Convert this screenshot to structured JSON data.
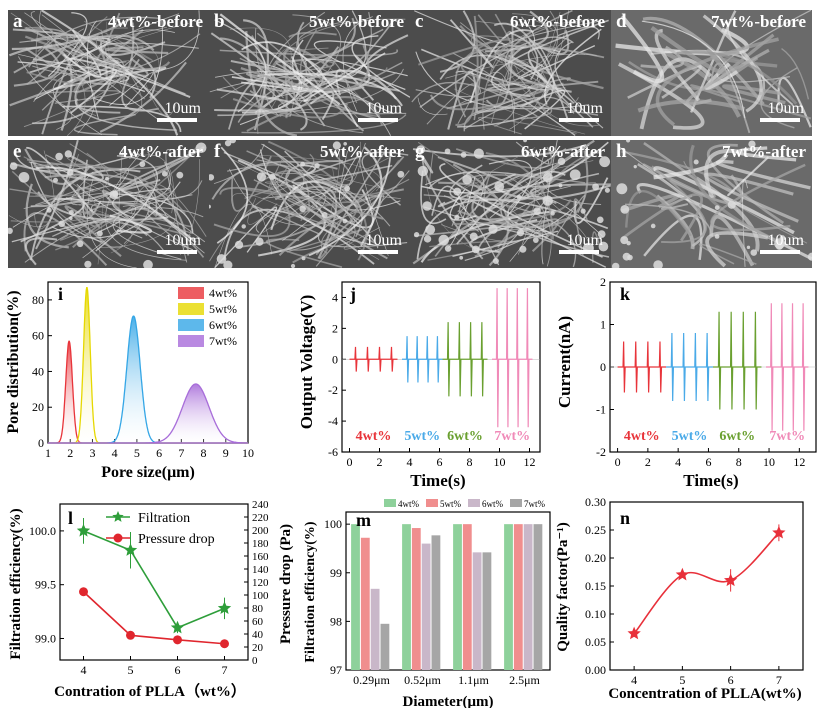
{
  "sem": {
    "panels": [
      {
        "letter": "a",
        "title": "4wt%-before",
        "scale": "10um"
      },
      {
        "letter": "b",
        "title": "5wt%-before",
        "scale": "10um"
      },
      {
        "letter": "c",
        "title": "6wt%-before",
        "scale": "10um"
      },
      {
        "letter": "d",
        "title": "7wt%-before",
        "scale": "10um"
      },
      {
        "letter": "e",
        "title": "4wt%-after",
        "scale": "10um"
      },
      {
        "letter": "f",
        "title": "5wt%-after",
        "scale": "10um"
      },
      {
        "letter": "g",
        "title": "6wt%-after",
        "scale": "10um"
      },
      {
        "letter": "h",
        "title": "7wt%-after",
        "scale": "10um"
      }
    ]
  },
  "chart_data": [
    {
      "id": "i",
      "type": "area",
      "panel_letter": "i",
      "title": "",
      "xlabel": "Pore size(μm)",
      "ylabel": "Pore distribution(%)",
      "xlim": [
        1,
        10
      ],
      "ylim": [
        0,
        90
      ],
      "xticks": [
        1,
        2,
        3,
        4,
        5,
        6,
        7,
        8,
        9,
        10
      ],
      "yticks": [
        0,
        20,
        40,
        60,
        80
      ],
      "series": [
        {
          "name": "4wt%",
          "peak_x": 1.95,
          "peak_y": 57,
          "width": 0.15,
          "color": "#e8343a"
        },
        {
          "name": "5wt%",
          "peak_x": 2.75,
          "peak_y": 87,
          "width": 0.15,
          "color": "#e6d800"
        },
        {
          "name": "6wt%",
          "peak_x": 4.85,
          "peak_y": 71,
          "width": 0.3,
          "color": "#34a6e6"
        },
        {
          "name": "7wt%",
          "peak_x": 7.65,
          "peak_y": 33,
          "width": 0.6,
          "color": "#a76cd9"
        }
      ]
    },
    {
      "id": "j",
      "type": "line",
      "panel_letter": "j",
      "title": "",
      "xlabel": "Time(s)",
      "ylabel": "Output Voltage(V)",
      "xlim": [
        -0.5,
        12.7
      ],
      "ylim": [
        -6,
        5
      ],
      "xticks": [
        0,
        2,
        4,
        6,
        8,
        10,
        12
      ],
      "yticks": [
        -6,
        -4,
        -2,
        0,
        2,
        4
      ],
      "series": [
        {
          "name": "4wt%",
          "t_start": 0,
          "t_end": 3.2,
          "amp_pos": 0.8,
          "amp_neg": 0.8,
          "color": "#e8343a"
        },
        {
          "name": "5wt%",
          "t_start": 3.5,
          "t_end": 6.2,
          "amp_pos": 1.5,
          "amp_neg": 1.5,
          "color": "#4aaae8"
        },
        {
          "name": "6wt%",
          "t_start": 6.2,
          "t_end": 9.2,
          "amp_pos": 2.4,
          "amp_neg": 2.4,
          "color": "#6aa030"
        },
        {
          "name": "7wt%",
          "t_start": 9.5,
          "t_end": 12.2,
          "amp_pos": 4.6,
          "amp_neg": 4.4,
          "color": "#f08ab8"
        }
      ]
    },
    {
      "id": "k",
      "type": "line",
      "panel_letter": "k",
      "title": "",
      "xlabel": "Time(s)",
      "ylabel": "Current(nA)",
      "xlim": [
        -0.5,
        13.1
      ],
      "ylim": [
        -2,
        2
      ],
      "xticks": [
        0,
        2,
        4,
        6,
        8,
        10,
        12
      ],
      "yticks": [
        -2,
        -1,
        0,
        1,
        2
      ],
      "series": [
        {
          "name": "4wt%",
          "t_start": 0,
          "t_end": 3.2,
          "amp_pos": 0.6,
          "amp_neg": 0.6,
          "color": "#e8343a"
        },
        {
          "name": "5wt%",
          "t_start": 3.2,
          "t_end": 6.3,
          "amp_pos": 0.8,
          "amp_neg": 0.8,
          "color": "#4aaae8"
        },
        {
          "name": "6wt%",
          "t_start": 6.3,
          "t_end": 9.5,
          "amp_pos": 1.3,
          "amp_neg": 1.0,
          "color": "#6aa030"
        },
        {
          "name": "7wt%",
          "t_start": 9.8,
          "t_end": 12.6,
          "amp_pos": 1.5,
          "amp_neg": 1.5,
          "color": "#f08ab8"
        }
      ]
    },
    {
      "id": "l",
      "type": "line",
      "panel_letter": "l",
      "title": "",
      "xlabel": "Contration of PLLA（wt%）",
      "ylabel": "Filtration efficiency(%)",
      "ylabel_right": "Pressure drop (Pa)",
      "x": [
        4,
        5,
        6,
        7
      ],
      "xlim": [
        3.5,
        7.5
      ],
      "ylim": [
        98.8,
        100.25
      ],
      "ylim_right": [
        0,
        240
      ],
      "xticks": [
        4,
        5,
        6,
        7
      ],
      "yticks": [
        99.0,
        99.5,
        100.0
      ],
      "yticks_right": [
        0,
        20,
        40,
        60,
        80,
        100,
        120,
        140,
        160,
        180,
        200,
        220,
        240
      ],
      "series": [
        {
          "name": "Filtration",
          "axis": "left",
          "values": [
            100.0,
            99.82,
            99.1,
            99.28
          ],
          "errors": [
            0.12,
            0.17,
            0.05,
            0.1
          ],
          "marker": "star",
          "color": "#2e9e3a"
        },
        {
          "name": "Pressure drop",
          "axis": "right",
          "values": [
            105,
            38,
            31,
            25
          ],
          "errors": [
            3,
            2,
            2,
            2
          ],
          "marker": "circle",
          "color": "#e0262e"
        }
      ]
    },
    {
      "id": "m",
      "type": "bar",
      "panel_letter": "m",
      "title": "",
      "xlabel": "Diameter(μm)",
      "ylabel": "Filtration efficiency(%)",
      "categories": [
        "0.29μm",
        "0.52μm",
        "1.1μm",
        "2.5μm"
      ],
      "ylim": [
        97,
        100.25
      ],
      "yticks": [
        97,
        98,
        99,
        100
      ],
      "series": [
        {
          "name": "4wt%",
          "values": [
            100.0,
            100.0,
            100.0,
            100.0
          ],
          "color": "#8ed19b"
        },
        {
          "name": "5wt%",
          "values": [
            99.72,
            99.92,
            100.0,
            100.0
          ],
          "color": "#f08e8e"
        },
        {
          "name": "6wt%",
          "values": [
            98.67,
            99.6,
            99.42,
            100.0
          ],
          "color": "#c9b7c9"
        },
        {
          "name": "7wt%",
          "values": [
            97.95,
            99.77,
            99.42,
            100.0
          ],
          "color": "#a6a6a6"
        }
      ]
    },
    {
      "id": "n",
      "type": "line",
      "panel_letter": "n",
      "title": "",
      "xlabel": "Concentration of PLLA(wt%)",
      "ylabel": "Quality factor(Pa⁻¹)",
      "x": [
        4,
        5,
        6,
        7
      ],
      "xlim": [
        3.5,
        7.5
      ],
      "ylim": [
        0,
        0.3
      ],
      "xticks": [
        4,
        5,
        6,
        7
      ],
      "yticks": [
        0.0,
        0.05,
        0.1,
        0.15,
        0.2,
        0.25,
        0.3
      ],
      "series": [
        {
          "name": "Quality factor",
          "values": [
            0.065,
            0.17,
            0.16,
            0.245
          ],
          "errors": [
            0.006,
            0.005,
            0.02,
            0.015
          ],
          "marker": "star",
          "color": "#e8303a"
        }
      ]
    }
  ]
}
